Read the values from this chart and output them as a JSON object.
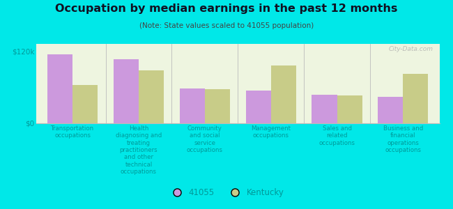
{
  "title": "Occupation by median earnings in the past 12 months",
  "subtitle": "(Note: State values scaled to 41055 population)",
  "background_color": "#00e8e8",
  "plot_bg_color": "#eef5e0",
  "categories": [
    "Transportation\noccupations",
    "Health\ndiagnosing and\ntreating\npractitioners\nand other\ntechnical\noccupations",
    "Community\nand social\nservice\noccupations",
    "Management\noccupations",
    "Sales and\nrelated\noccupations",
    "Business and\nfinancial\noperations\noccupations"
  ],
  "values_41055": [
    115000,
    107000,
    58000,
    55000,
    47000,
    44000
  ],
  "values_kentucky": [
    64000,
    88000,
    57000,
    96000,
    46000,
    82000
  ],
  "color_41055": "#cc99dd",
  "color_kentucky": "#c8cc88",
  "ylim": [
    0,
    132000
  ],
  "legend_41055": "41055",
  "legend_kentucky": "Kentucky",
  "bar_width": 0.38,
  "title_color": "#111122",
  "subtitle_color": "#444444",
  "axis_label_color": "#009999",
  "watermark": "City-Data.com",
  "sep_line_color": "#bbbbbb",
  "spine_color": "#bbbbbb"
}
